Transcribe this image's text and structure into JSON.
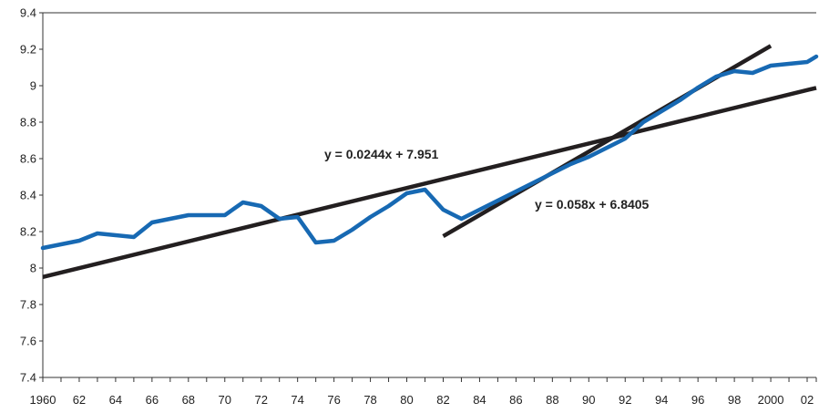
{
  "chart_data": {
    "type": "line",
    "title": "",
    "xlabel": "",
    "ylabel": "",
    "xlim": [
      1960,
      2002.5
    ],
    "ylim": [
      7.4,
      9.4
    ],
    "grid": false,
    "x_tick_values": [
      1960,
      1962,
      1964,
      1966,
      1968,
      1970,
      1972,
      1974,
      1976,
      1978,
      1980,
      1982,
      1984,
      1986,
      1988,
      1990,
      1992,
      1994,
      1996,
      1998,
      2000,
      2002
    ],
    "x_tick_labels": [
      "1960",
      "62",
      "64",
      "66",
      "68",
      "70",
      "72",
      "74",
      "76",
      "78",
      "80",
      "82",
      "84",
      "86",
      "88",
      "90",
      "92",
      "94",
      "96",
      "98",
      "2000",
      "02"
    ],
    "y_tick_values": [
      7.4,
      7.6,
      7.8,
      8,
      8.2,
      8.4,
      8.6,
      8.8,
      9,
      9.2,
      9.4
    ],
    "y_tick_labels": [
      "7.4",
      "7.6",
      "7.8",
      "8",
      "8.2",
      "8.4",
      "8.6",
      "8.8",
      "9",
      "9.2",
      "9.4"
    ],
    "series": [
      {
        "color": "#1769b3",
        "x": [
          1960,
          1961,
          1962,
          1963,
          1964,
          1965,
          1966,
          1967,
          1968,
          1969,
          1970,
          1971,
          1972,
          1973,
          1974,
          1975,
          1976,
          1977,
          1978,
          1979,
          1980,
          1981,
          1982,
          1983,
          1984,
          1985,
          1986,
          1987,
          1988,
          1989,
          1990,
          1991,
          1992,
          1993,
          1994,
          1995,
          1996,
          1997,
          1998,
          1999,
          2000,
          2001,
          2002,
          2002.5
        ],
        "y": [
          8.11,
          8.13,
          8.15,
          8.19,
          8.18,
          8.17,
          8.25,
          8.27,
          8.29,
          8.29,
          8.29,
          8.36,
          8.34,
          8.27,
          8.28,
          8.14,
          8.15,
          8.21,
          8.28,
          8.34,
          8.41,
          8.43,
          8.32,
          8.27,
          8.32,
          8.37,
          8.42,
          8.47,
          8.52,
          8.57,
          8.61,
          8.66,
          8.71,
          8.8,
          8.86,
          8.92,
          8.99,
          9.05,
          9.08,
          9.07,
          9.11,
          9.12,
          9.13,
          9.16
        ]
      }
    ],
    "trendlines": [
      {
        "label": "y = 0.0244x + 7.951",
        "slope": 0.0244,
        "intercept": 7.951,
        "x_start": 1960,
        "x_end": 2002.5,
        "index_base": 1960,
        "color": "#231f20"
      },
      {
        "label": "y = 0.058x + 6.8405",
        "slope": 0.058,
        "intercept": 6.8405,
        "x_start": 1982,
        "x_end": 2000,
        "index_base": 1959,
        "color": "#231f20"
      }
    ]
  }
}
